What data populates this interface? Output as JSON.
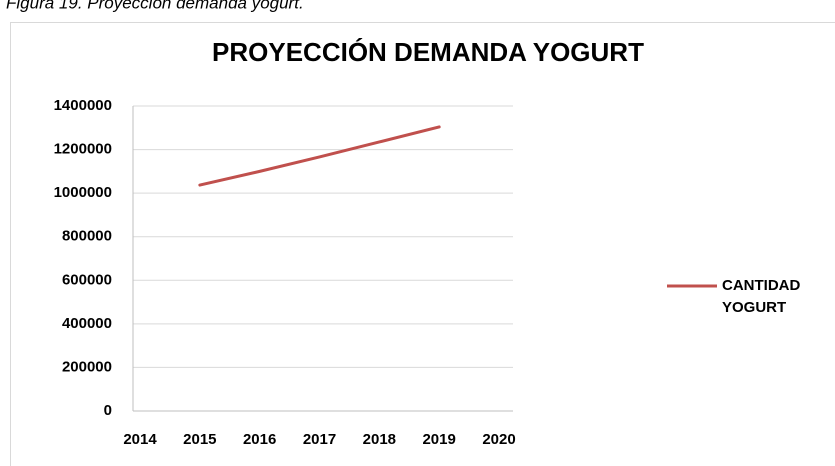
{
  "caption": "Figura 19. Proyección demanda yogurt.",
  "chart_data": {
    "type": "line",
    "title": "PROYECCIÓN DEMANDA  YOGURT",
    "x": [
      2015,
      2016,
      2017,
      2018,
      2019
    ],
    "series": [
      {
        "name": "CANTIDAD YOGURT",
        "color": "#c0504d",
        "values": [
          1037000,
          1100000,
          1166000,
          1235000,
          1304000
        ]
      }
    ],
    "xlim": [
      2014,
      2020
    ],
    "xticks": [
      2014,
      2015,
      2016,
      2017,
      2018,
      2019,
      2020
    ],
    "ylim": [
      0,
      1400000
    ],
    "yticks": [
      0,
      200000,
      400000,
      600000,
      800000,
      1000000,
      1200000,
      1400000
    ],
    "grid": true,
    "legend": "right"
  }
}
